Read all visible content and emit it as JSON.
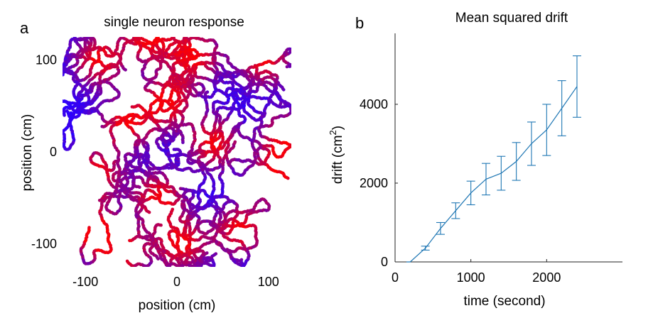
{
  "chart_data": [
    {
      "type": "scatter",
      "panel_label": "a",
      "title": "single neuron response",
      "xlabel": "position (cm)",
      "ylabel": "position (cm)",
      "xlim": [
        -125,
        125
      ],
      "ylim": [
        -125,
        125
      ],
      "x_ticks": [
        -100,
        0,
        100
      ],
      "x_tick_labels": [
        "-100",
        "0",
        "100"
      ],
      "y_ticks": [
        -100,
        0,
        100
      ],
      "y_tick_labels": [
        "-100",
        "0",
        "100"
      ],
      "colormap": {
        "low": "#2a00ff",
        "high": "#ff0000"
      },
      "grid_spacing_cm": 70,
      "grid_orientation_deg": 30,
      "field_centers": [
        [
          95,
          100
        ],
        [
          -85,
          100
        ],
        [
          20,
          105
        ],
        [
          -55,
          30
        ],
        [
          40,
          10
        ],
        [
          -90,
          -25
        ],
        [
          -20,
          -50
        ],
        [
          -95,
          -85
        ],
        [
          70,
          -85
        ],
        [
          5,
          -100
        ],
        [
          -10,
          55
        ],
        [
          120,
          15
        ],
        [
          -30,
          125
        ],
        [
          110,
          -30
        ],
        [
          -60,
          -110
        ]
      ]
    },
    {
      "type": "line",
      "panel_label": "b",
      "title": "Mean squared drift",
      "xlabel": "time (second)",
      "ylabel": "drift (cm",
      "ylabel_sup": "2",
      "ylabel_end": ")",
      "xlim": [
        0,
        3000
      ],
      "ylim": [
        0,
        5800
      ],
      "x_ticks": [
        0,
        1000,
        2000
      ],
      "x_tick_labels": [
        "0",
        "1000",
        "2000"
      ],
      "y_ticks": [
        0,
        2000,
        4000
      ],
      "y_tick_labels": [
        "0",
        "2000",
        "4000"
      ],
      "line_color": "#1f77b4",
      "series": [
        {
          "name": "mean squared drift",
          "x": [
            150,
            200,
            400,
            600,
            800,
            1000,
            1200,
            1400,
            1600,
            1800,
            2000,
            2200,
            2400
          ],
          "y": [
            0,
            0,
            350,
            850,
            1300,
            1750,
            2100,
            2250,
            2550,
            3000,
            3350,
            3900,
            4450
          ],
          "err": [
            null,
            null,
            50,
            150,
            200,
            300,
            400,
            430,
            480,
            550,
            650,
            700,
            780
          ]
        }
      ]
    }
  ]
}
